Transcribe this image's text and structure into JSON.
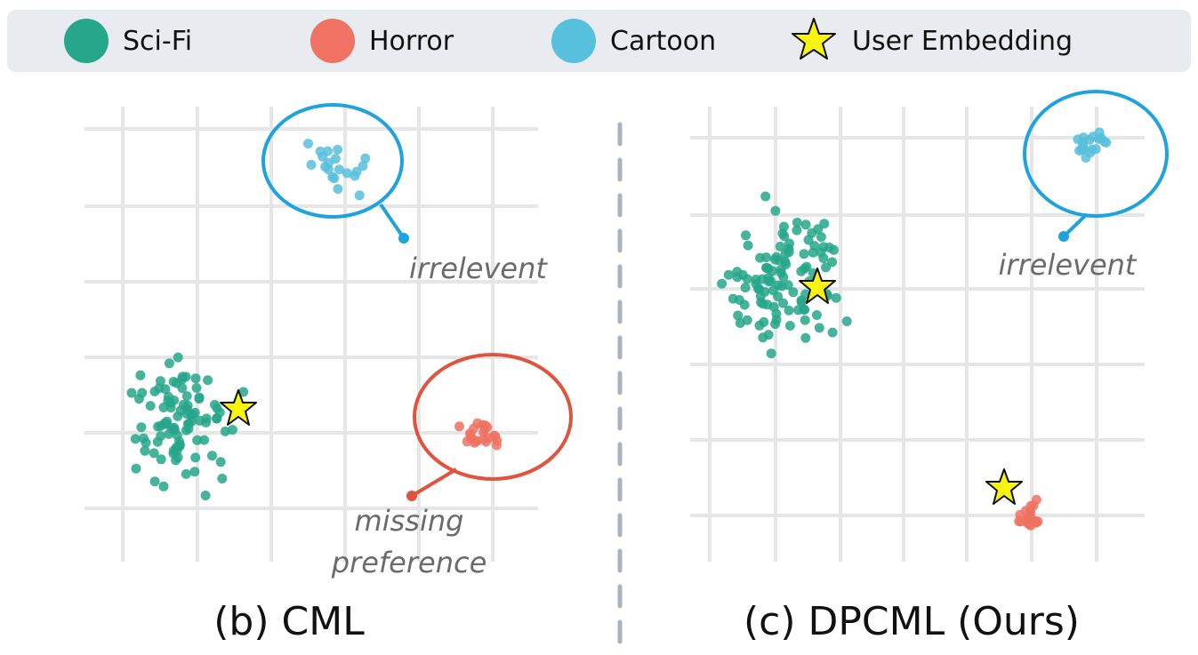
{
  "legend": {
    "items": [
      {
        "key": "scifi",
        "label": "Sci-Fi",
        "color": "#26a68a",
        "shape": "circle"
      },
      {
        "key": "horror",
        "label": "Horror",
        "color": "#ef7262",
        "shape": "circle"
      },
      {
        "key": "cartoon",
        "label": "Cartoon",
        "color": "#57c0dc",
        "shape": "circle"
      },
      {
        "key": "user",
        "label": "User Embedding",
        "color": "#f8f410",
        "shape": "star-icon"
      }
    ]
  },
  "panels": {
    "left": {
      "caption": "(b) CML",
      "note_cartoon": "irrelevent",
      "note_horror_line1": "missing",
      "note_horror_line2": "preference"
    },
    "right": {
      "caption": "(c) DPCML (Ours)",
      "note_cartoon": "irrelevent"
    }
  },
  "colors": {
    "grid": "#e6e6e6",
    "divider": "#aab3bd",
    "cartoon_callout": "#1fa3de",
    "horror_callout": "#e0543e"
  }
}
